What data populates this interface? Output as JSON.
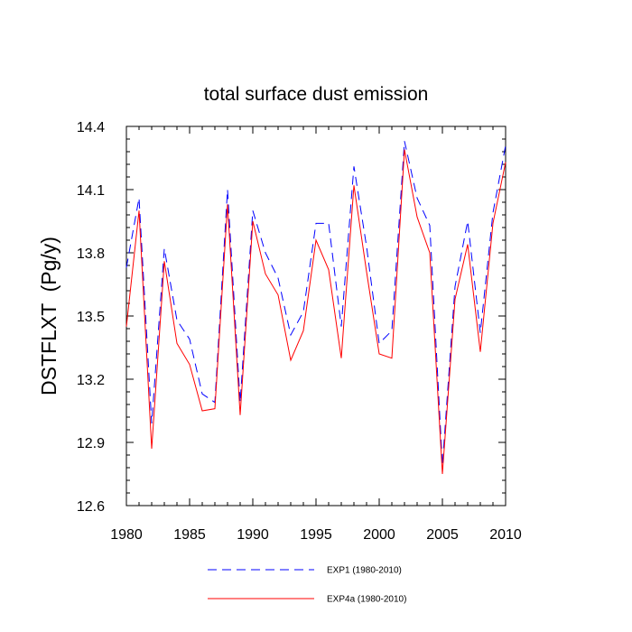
{
  "chart_data": {
    "type": "line",
    "title": "total surface dust emission",
    "xlabel": "",
    "ylabel": "DSTFLXT  (Pg/y)",
    "xlim": [
      1980,
      2010
    ],
    "ylim": [
      12.6,
      14.4
    ],
    "x_ticks": [
      "1980",
      "1985",
      "1990",
      "1995",
      "2000",
      "2005",
      "2010"
    ],
    "y_ticks": [
      "12.6",
      "12.9",
      "13.2",
      "13.5",
      "13.8",
      "14.1",
      "14.4"
    ],
    "grid": false,
    "legend_position": "bottom",
    "x": [
      1980,
      1981,
      1982,
      1983,
      1984,
      1985,
      1986,
      1987,
      1988,
      1989,
      1990,
      1991,
      1992,
      1993,
      1994,
      1995,
      1996,
      1997,
      1998,
      1999,
      2000,
      2001,
      2002,
      2003,
      2004,
      2005,
      2006,
      2007,
      2008,
      2009,
      2010
    ],
    "series": [
      {
        "name": "EXP1 (1980-2010)",
        "color": "#0000ff",
        "line_style": "dashed",
        "values": [
          13.73,
          14.06,
          12.99,
          13.82,
          13.48,
          13.39,
          13.13,
          13.09,
          14.1,
          13.09,
          14.0,
          13.8,
          13.68,
          13.41,
          13.52,
          13.94,
          13.94,
          13.45,
          14.21,
          13.83,
          13.37,
          13.43,
          14.33,
          14.06,
          13.93,
          12.79,
          13.64,
          13.95,
          13.42,
          13.99,
          14.31
        ]
      },
      {
        "name": "EXP4a (1980-2010)",
        "color": "#ff0000",
        "line_style": "solid",
        "values": [
          13.45,
          14.0,
          12.87,
          13.76,
          13.37,
          13.27,
          13.05,
          13.06,
          14.03,
          13.03,
          13.95,
          13.7,
          13.6,
          13.29,
          13.43,
          13.86,
          13.72,
          13.3,
          14.12,
          13.71,
          13.32,
          13.3,
          14.29,
          13.97,
          13.8,
          12.75,
          13.58,
          13.84,
          13.33,
          13.94,
          14.23
        ]
      }
    ]
  }
}
